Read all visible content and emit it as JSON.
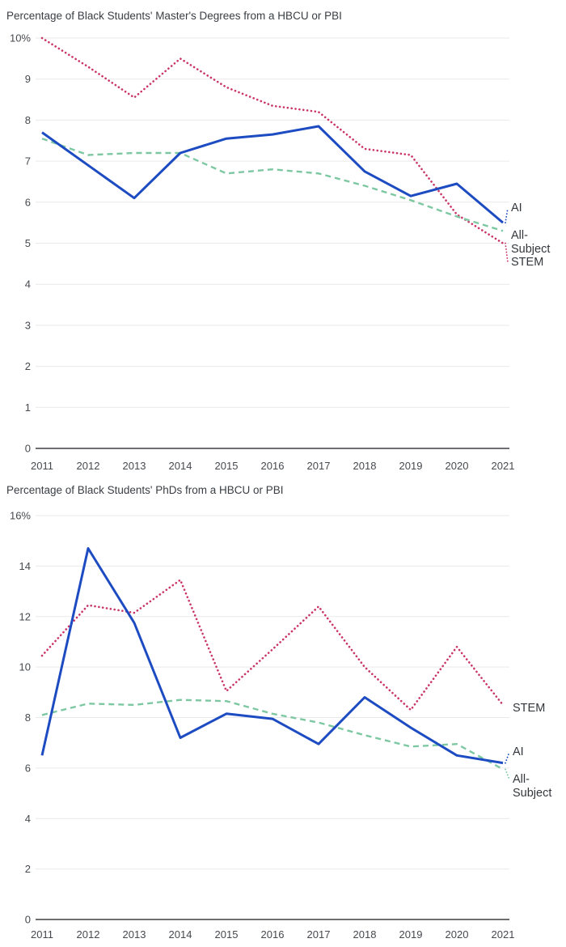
{
  "page": {
    "background": "#ffffff"
  },
  "chart_data": [
    {
      "type": "line",
      "title": "Percentage of Black Students' Master's Degrees from a HBCU or PBI",
      "x": [
        2011,
        2012,
        2013,
        2014,
        2015,
        2016,
        2017,
        2018,
        2019,
        2020,
        2021
      ],
      "xlabel": "",
      "ylabel": "",
      "ylim": [
        0,
        10
      ],
      "ytick_step": 1,
      "ytick_labels": [
        "0",
        "1",
        "2",
        "3",
        "4",
        "5",
        "6",
        "7",
        "8",
        "9",
        "10%"
      ],
      "grid": true,
      "legend_position": "right-edge-labels",
      "series": [
        {
          "name": "STEM",
          "style": "dotted",
          "color": "#ca3568",
          "label_lines": [
            "STEM"
          ],
          "values": [
            10.0,
            9.3,
            8.55,
            9.5,
            8.8,
            8.35,
            8.2,
            7.3,
            7.15,
            5.7,
            5.0
          ]
        },
        {
          "name": "All-Subject",
          "style": "dashed",
          "color": "#7dc8a2",
          "label_lines": [
            "All-",
            "Subject"
          ],
          "values": [
            7.55,
            7.15,
            7.2,
            7.2,
            6.7,
            6.8,
            6.7,
            6.4,
            6.05,
            5.65,
            5.3
          ]
        },
        {
          "name": "AI",
          "style": "solid",
          "color": "#1d4bc1",
          "label_lines": [
            "AI"
          ],
          "values": [
            7.7,
            6.9,
            6.1,
            7.2,
            7.55,
            7.65,
            7.85,
            6.75,
            6.15,
            6.45,
            5.5
          ]
        }
      ]
    },
    {
      "type": "line",
      "title": "Percentage of Black Students' PhDs from a HBCU or PBI",
      "x": [
        2011,
        2012,
        2013,
        2014,
        2015,
        2016,
        2017,
        2018,
        2019,
        2020,
        2021
      ],
      "xlabel": "",
      "ylabel": "",
      "ylim": [
        0,
        16
      ],
      "ytick_step": 2,
      "ytick_labels": [
        "0",
        "2",
        "4",
        "6",
        "8",
        "10",
        "12",
        "14",
        "16%"
      ],
      "grid": true,
      "legend_position": "right-edge-labels",
      "series": [
        {
          "name": "STEM",
          "style": "dotted",
          "color": "#ca3568",
          "label_lines": [
            "STEM"
          ],
          "values": [
            10.45,
            12.45,
            12.15,
            13.45,
            9.05,
            10.7,
            12.4,
            10.0,
            8.3,
            10.8,
            8.5
          ]
        },
        {
          "name": "All-Subject",
          "style": "dashed",
          "color": "#7dc8a2",
          "label_lines": [
            "All-",
            "Subject"
          ],
          "values": [
            8.1,
            8.55,
            8.5,
            8.7,
            8.65,
            8.15,
            7.8,
            7.3,
            6.85,
            6.95,
            5.95
          ]
        },
        {
          "name": "AI",
          "style": "solid",
          "color": "#1d4bc1",
          "label_lines": [
            "AI"
          ],
          "values": [
            6.5,
            14.7,
            11.75,
            7.2,
            8.15,
            7.95,
            6.95,
            8.8,
            7.6,
            6.5,
            6.2
          ]
        }
      ]
    }
  ]
}
